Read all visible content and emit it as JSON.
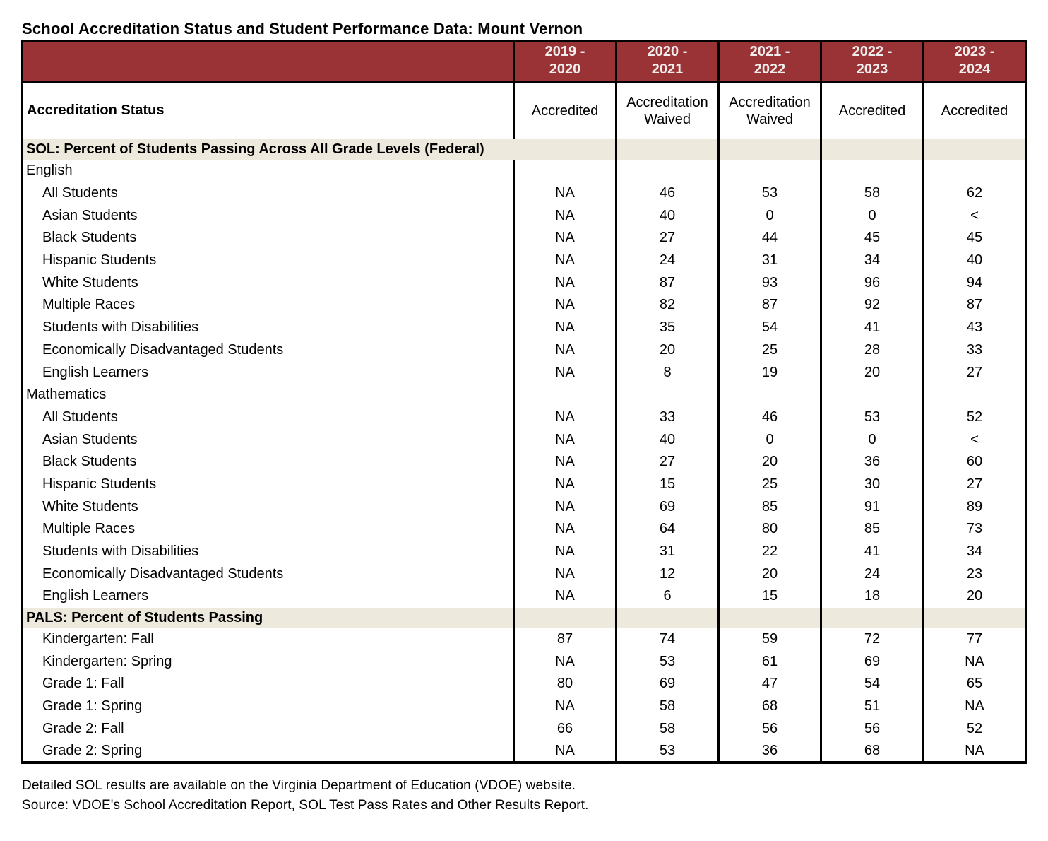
{
  "page": {
    "title": "School Accreditation Status and Student Performance Data: Mount Vernon",
    "footnotes": [
      "Detailed SOL results are available on the Virginia Department of Education (VDOE) website.",
      "Source: VDOE's School Accreditation Report, SOL Test Pass Rates and Other Results Report."
    ]
  },
  "colors": {
    "header_bg": "#993336",
    "header_text": "#f2eded",
    "band_bg": "#edeadd",
    "border": "#000000"
  },
  "table": {
    "year_columns": [
      {
        "line1": "2019 -",
        "line2": "2020"
      },
      {
        "line1": "2020 -",
        "line2": "2021"
      },
      {
        "line1": "2021 -",
        "line2": "2022"
      },
      {
        "line1": "2022 -",
        "line2": "2023"
      },
      {
        "line1": "2023 -",
        "line2": "2024"
      }
    ],
    "accreditation": {
      "label": "Accreditation Status",
      "values": [
        "Accredited",
        "Accreditation Waived",
        "Accreditation Waived",
        "Accredited",
        "Accredited"
      ]
    },
    "rows": [
      {
        "kind": "band",
        "wide": true,
        "label": "SOL: Percent of Students Passing Across All Grade Levels (Federal)",
        "values": []
      },
      {
        "kind": "group",
        "label": "English",
        "values": []
      },
      {
        "kind": "data",
        "label": "All Students",
        "values": [
          "NA",
          "46",
          "53",
          "58",
          "62"
        ]
      },
      {
        "kind": "data",
        "label": "Asian Students",
        "values": [
          "NA",
          "40",
          "0",
          "0",
          "<"
        ]
      },
      {
        "kind": "data",
        "label": "Black Students",
        "values": [
          "NA",
          "27",
          "44",
          "45",
          "45"
        ]
      },
      {
        "kind": "data",
        "label": "Hispanic Students",
        "values": [
          "NA",
          "24",
          "31",
          "34",
          "40"
        ]
      },
      {
        "kind": "data",
        "label": "White Students",
        "values": [
          "NA",
          "87",
          "93",
          "96",
          "94"
        ]
      },
      {
        "kind": "data",
        "label": "Multiple Races",
        "values": [
          "NA",
          "82",
          "87",
          "92",
          "87"
        ]
      },
      {
        "kind": "data",
        "label": "Students with Disabilities",
        "values": [
          "NA",
          "35",
          "54",
          "41",
          "43"
        ]
      },
      {
        "kind": "data",
        "label": "Economically Disadvantaged Students",
        "values": [
          "NA",
          "20",
          "25",
          "28",
          "33"
        ]
      },
      {
        "kind": "data",
        "label": "English Learners",
        "values": [
          "NA",
          "8",
          "19",
          "20",
          "27"
        ]
      },
      {
        "kind": "group",
        "label": "Mathematics",
        "values": []
      },
      {
        "kind": "data",
        "label": "All Students",
        "values": [
          "NA",
          "33",
          "46",
          "53",
          "52"
        ]
      },
      {
        "kind": "data",
        "label": "Asian Students",
        "values": [
          "NA",
          "40",
          "0",
          "0",
          "<"
        ]
      },
      {
        "kind": "data",
        "label": "Black Students",
        "values": [
          "NA",
          "27",
          "20",
          "36",
          "60"
        ]
      },
      {
        "kind": "data",
        "label": "Hispanic Students",
        "values": [
          "NA",
          "15",
          "25",
          "30",
          "27"
        ]
      },
      {
        "kind": "data",
        "label": "White Students",
        "values": [
          "NA",
          "69",
          "85",
          "91",
          "89"
        ]
      },
      {
        "kind": "data",
        "label": "Multiple Races",
        "values": [
          "NA",
          "64",
          "80",
          "85",
          "73"
        ]
      },
      {
        "kind": "data",
        "label": "Students with Disabilities",
        "values": [
          "NA",
          "31",
          "22",
          "41",
          "34"
        ]
      },
      {
        "kind": "data",
        "label": "Economically Disadvantaged Students",
        "values": [
          "NA",
          "12",
          "20",
          "24",
          "23"
        ]
      },
      {
        "kind": "data",
        "label": "English Learners",
        "values": [
          "NA",
          "6",
          "15",
          "18",
          "20"
        ]
      },
      {
        "kind": "band",
        "wide": false,
        "label": "PALS: Percent of Students Passing",
        "values": []
      },
      {
        "kind": "data",
        "label": "Kindergarten: Fall",
        "values": [
          "87",
          "74",
          "59",
          "72",
          "77"
        ]
      },
      {
        "kind": "data",
        "label": "Kindergarten: Spring",
        "values": [
          "NA",
          "53",
          "61",
          "69",
          "NA"
        ]
      },
      {
        "kind": "data",
        "label": "Grade 1: Fall",
        "values": [
          "80",
          "69",
          "47",
          "54",
          "65"
        ]
      },
      {
        "kind": "data",
        "label": "Grade 1: Spring",
        "values": [
          "NA",
          "58",
          "68",
          "51",
          "NA"
        ]
      },
      {
        "kind": "data",
        "label": "Grade 2: Fall",
        "values": [
          "66",
          "58",
          "56",
          "56",
          "52"
        ]
      },
      {
        "kind": "data",
        "label": "Grade 2: Spring",
        "values": [
          "NA",
          "53",
          "36",
          "68",
          "NA"
        ]
      }
    ]
  }
}
